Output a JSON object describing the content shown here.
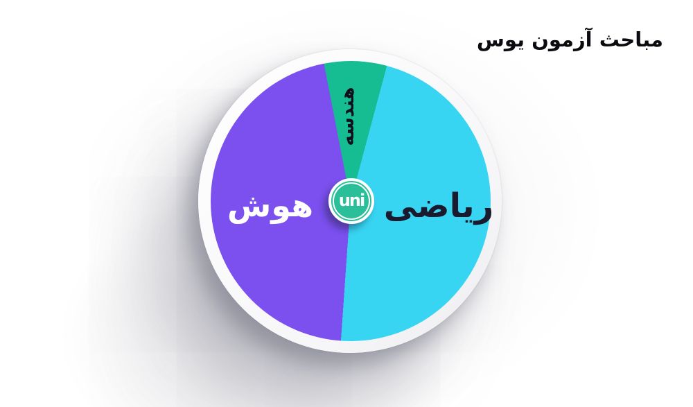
{
  "title": {
    "text": "مباحث آزمون یوس"
  },
  "center_badge": {
    "logo_text": "uni"
  },
  "colors": {
    "math_slice": "#38d5f3",
    "iq_slice": "#7b50ef",
    "geometry_slice": "#16bd92",
    "badge_green": "#2abf98",
    "badge_ring": "#ffffff",
    "title_text": "#0b0b0f",
    "background": "#ffffff",
    "plate": "#f4f4f6"
  },
  "chart_data": {
    "type": "pie",
    "title": "مباحث آزمون یوس",
    "legend_position": "none",
    "labels_on_slices": true,
    "slices": [
      {
        "label": "ریاضی",
        "value_pct": 47,
        "color": "#38d5f3",
        "start_deg": 15,
        "end_deg": 184,
        "label_color": "#1a1a2e",
        "label_rotation_deg": 0
      },
      {
        "label": "هوش",
        "value_pct": 46,
        "color": "#7b50ef",
        "start_deg": 184,
        "end_deg": 349,
        "label_color": "#ffffff",
        "label_rotation_deg": 0
      },
      {
        "label": "هندسه",
        "value_pct": 7,
        "color": "#16bd92",
        "start_deg": -11,
        "end_deg": 15,
        "label_color": "#10101c",
        "label_rotation_deg": -90
      }
    ]
  }
}
